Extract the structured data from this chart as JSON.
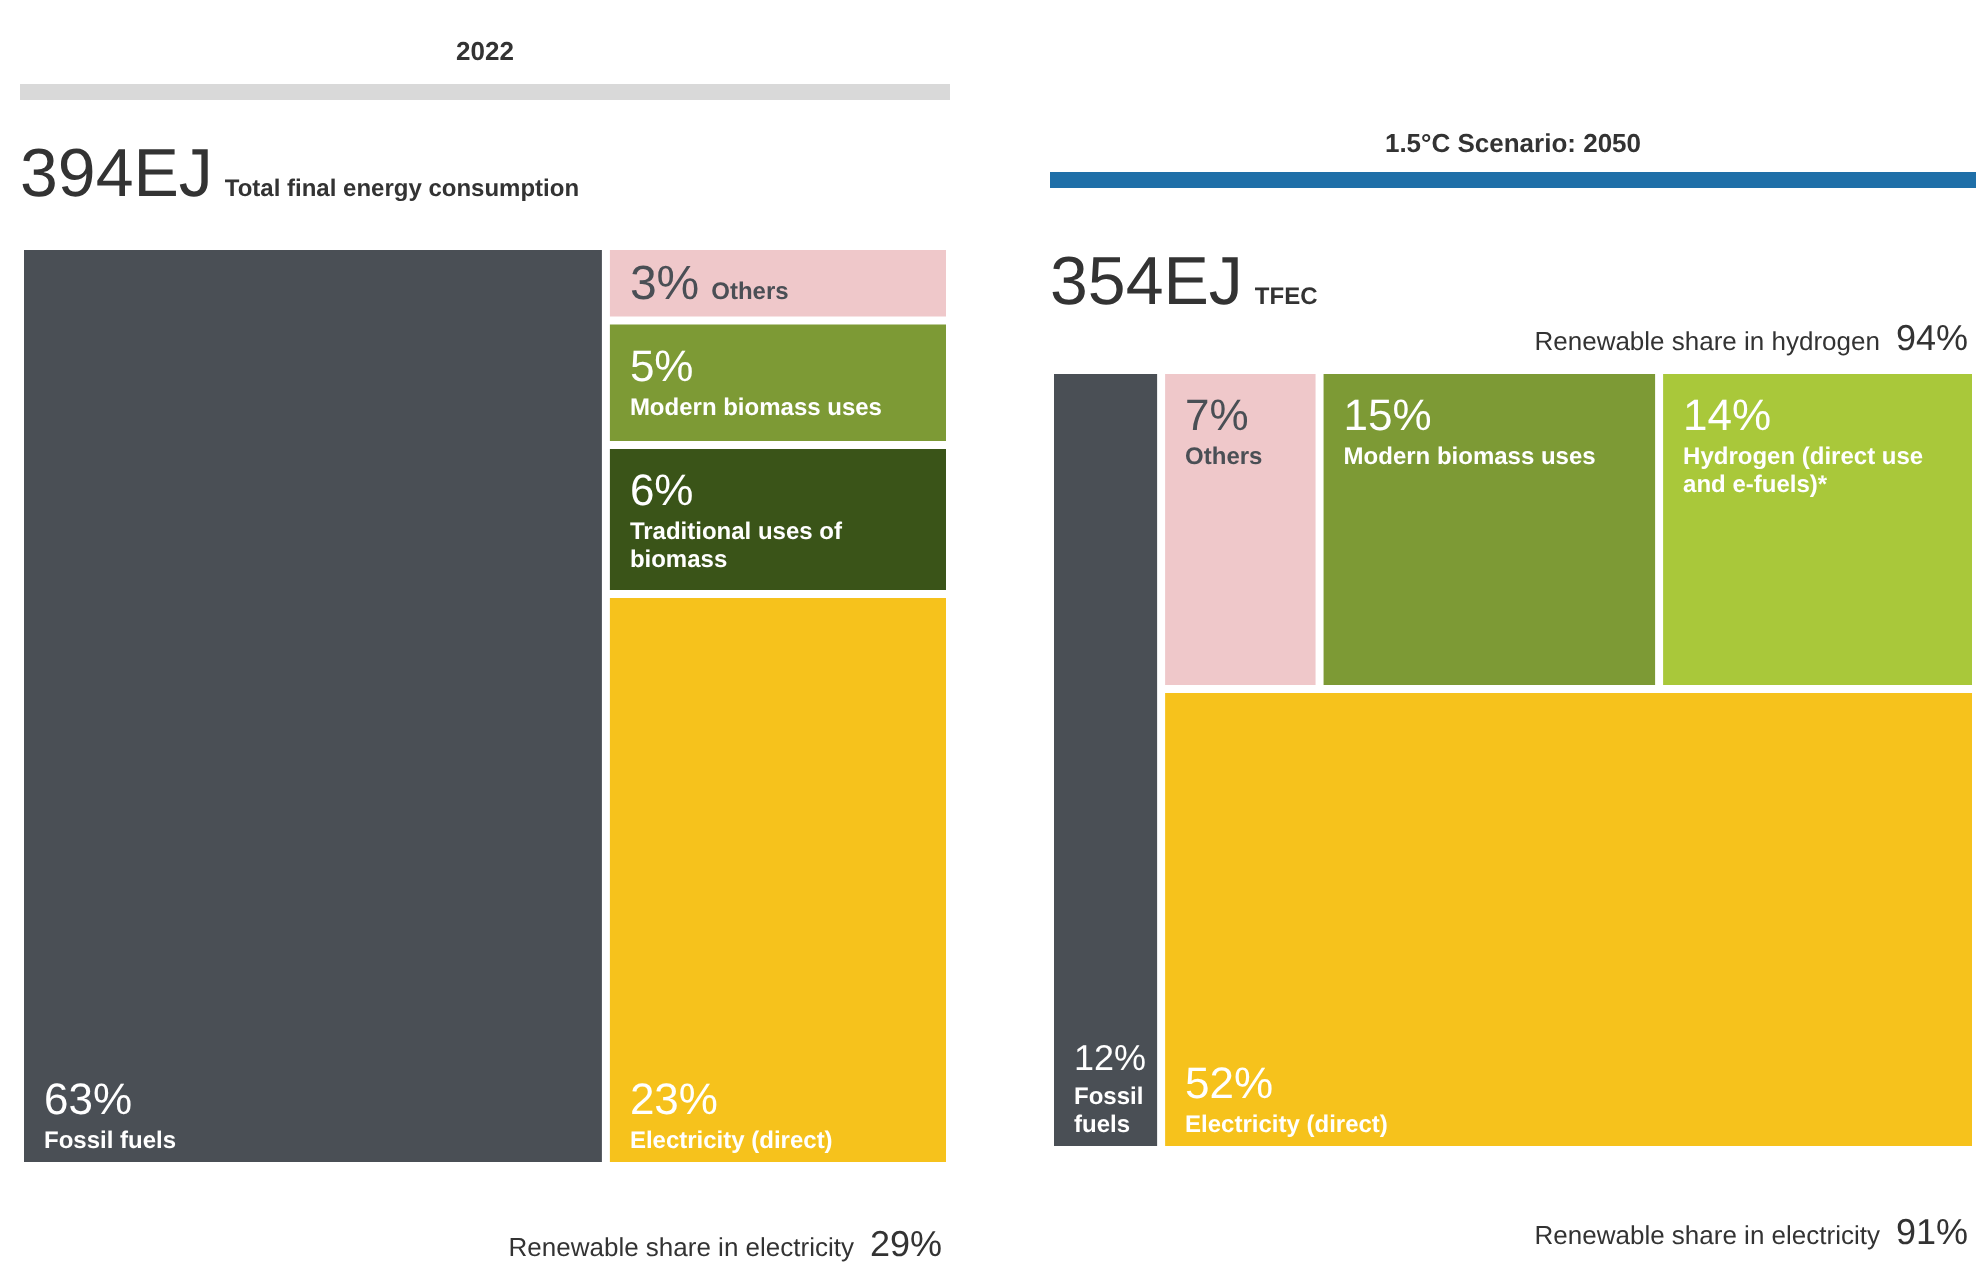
{
  "chart_data": [
    {
      "type": "other",
      "title": "2022",
      "subtitle": "394EJ Total final energy consumption",
      "categories": [
        "Fossil fuels",
        "Others",
        "Modern biomass uses",
        "Traditional uses of biomass",
        "Electricity (direct)"
      ],
      "values": [
        63,
        3,
        5,
        6,
        23
      ],
      "value_labels": [
        "63%",
        "3%",
        "5%",
        "6%",
        "23%"
      ],
      "colors": [
        "#4a4f55",
        "#efc8ca",
        "#7d9a35",
        "#3a5418",
        "#f6c21c"
      ],
      "annotations": [
        {
          "text": "Renewable share in electricity 29%",
          "x": "Electricity (direct)"
        }
      ]
    },
    {
      "type": "other",
      "title": "1.5°C Scenario: 2050",
      "subtitle": "354EJ TFEC",
      "categories": [
        "Fossil fuels",
        "Others",
        "Modern biomass uses",
        "Hydrogen (direct use and e-fuels)*",
        "Electricity (direct)"
      ],
      "values": [
        12,
        7,
        15,
        14,
        52
      ],
      "value_labels": [
        "12%",
        "7%",
        "15%",
        "14%",
        "52%"
      ],
      "colors": [
        "#4a4f55",
        "#efc8ca",
        "#7d9a35",
        "#a9c83a",
        "#f6c21c"
      ],
      "annotations": [
        {
          "text": "Renewable share in hydrogen 94%",
          "x": "Hydrogen (direct use and e-fuels)*"
        },
        {
          "text": "Renewable share in electricity 91%",
          "x": "Electricity (direct)"
        }
      ]
    }
  ]
}
